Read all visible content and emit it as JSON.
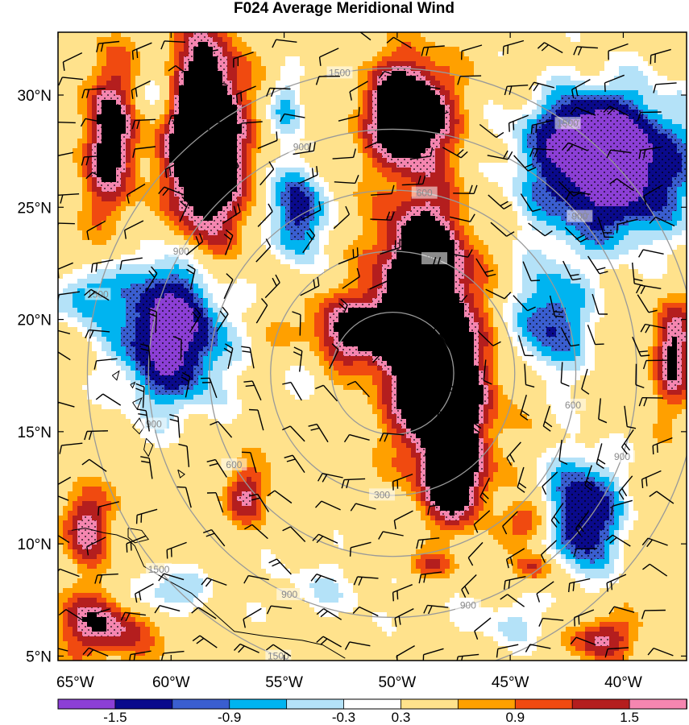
{
  "chart_data": {
    "type": "heatmap",
    "title": "F024 Average Meridional Wind",
    "x_ticks": [
      "65°W",
      "60°W",
      "55°W",
      "50°W",
      "45°W",
      "40°W"
    ],
    "x_values": [
      -65,
      -60,
      -55,
      -50,
      -45,
      -40
    ],
    "y_ticks": [
      "30°N",
      "25°N",
      "20°N",
      "15°N",
      "10°N",
      "5°N"
    ],
    "y_values": [
      30,
      25,
      20,
      15,
      10,
      5
    ],
    "xlim": [
      -65,
      -37.2
    ],
    "ylim": [
      4.8,
      32.8
    ],
    "colorbar": {
      "levels": [
        "-1.5",
        "-0.9",
        "-0.3",
        "0.3",
        "0.9",
        "1.5"
      ],
      "level_values": [
        -1.5,
        -0.9,
        -0.3,
        0.3,
        0.9,
        1.5
      ],
      "colors": [
        "#8c3fd6",
        "#0a0a8c",
        "#3a5ed0",
        "#00b4f0",
        "#b4e2f8",
        "#ffffff",
        "#ffe28c",
        "#ffa000",
        "#f04a10",
        "#b41e1e",
        "#f586b0"
      ]
    },
    "contour_labels": [
      "1500",
      "1500",
      "1500",
      "1500",
      "1500",
      "900",
      "900",
      "900",
      "900",
      "900",
      "900",
      "900",
      "300",
      "300",
      "600",
      "600",
      "600"
    ],
    "colors": {
      "frame": "#000000",
      "range_rings": "#999999",
      "coastline": "#000000"
    }
  }
}
